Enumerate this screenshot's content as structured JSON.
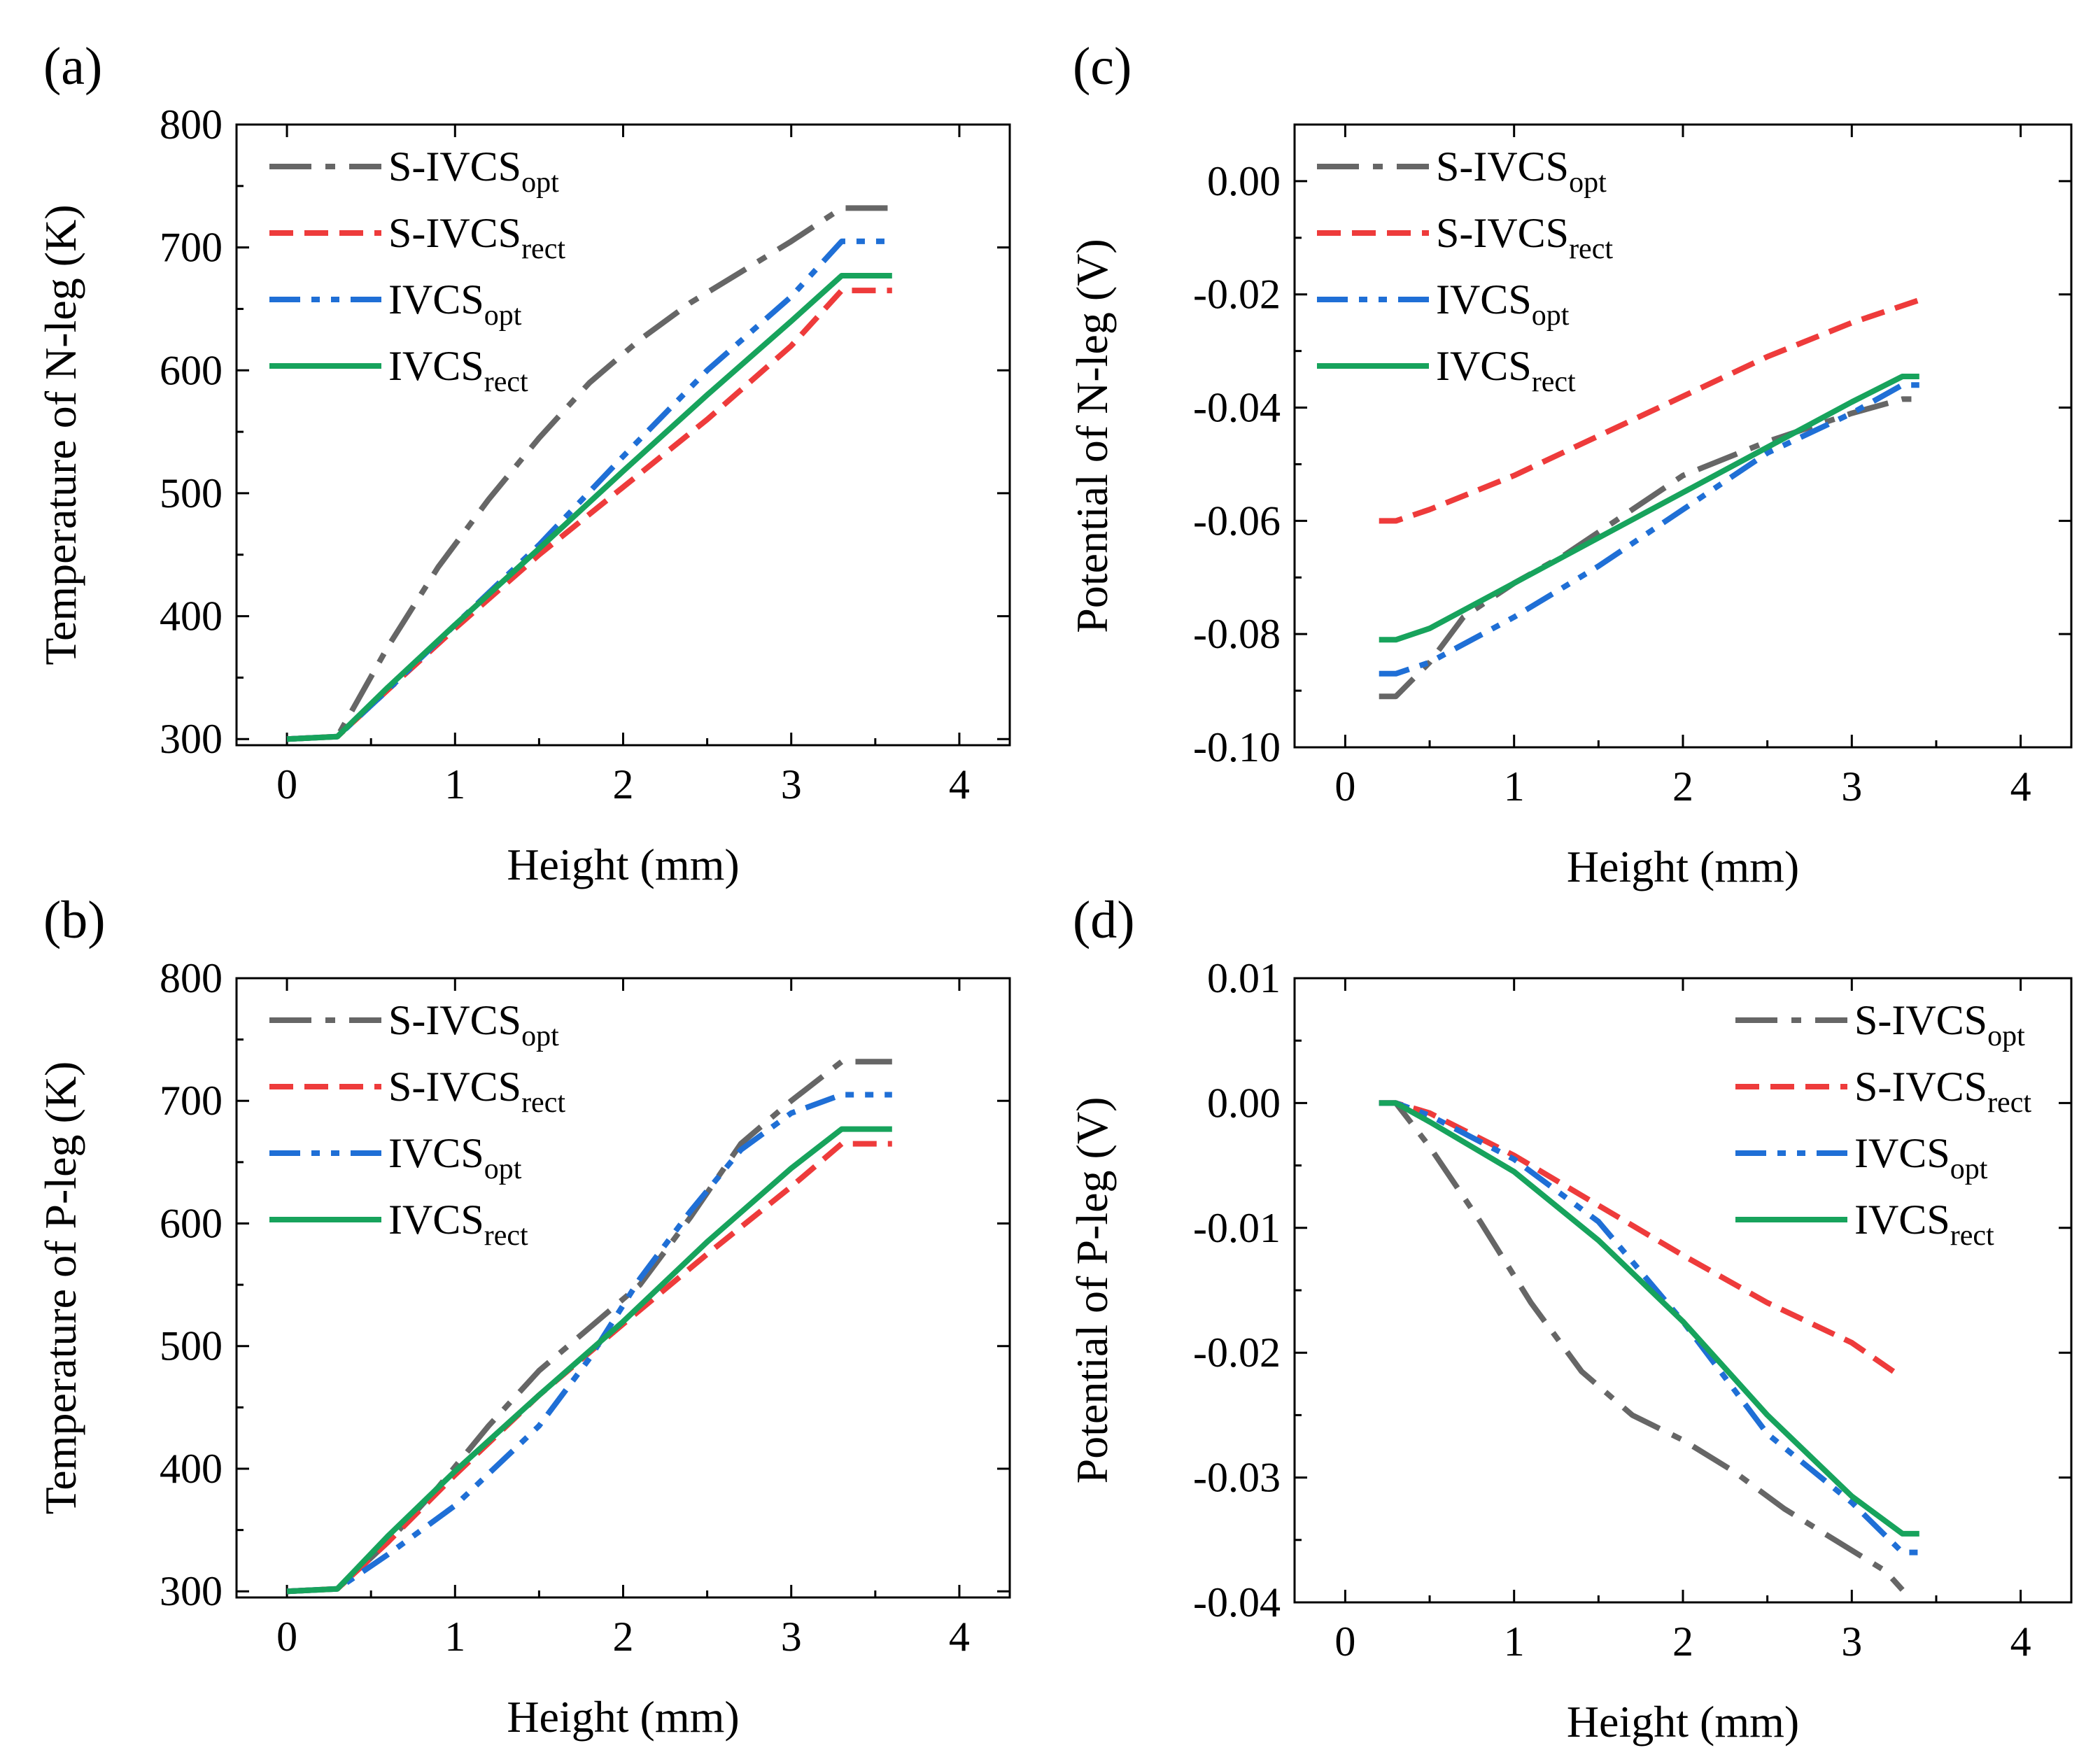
{
  "chart_data": [
    {
      "id": "a",
      "panel_label": "(a)",
      "type": "line",
      "xlabel": "Height (mm)",
      "ylabel": "Temperature of  N-leg (K)",
      "xlim": [
        -0.3,
        4.3
      ],
      "ylim": [
        295,
        800
      ],
      "xticks": [
        0,
        1,
        2,
        3,
        4
      ],
      "yticks": [
        300,
        400,
        500,
        600,
        700,
        800
      ],
      "ytick_labels": [
        "300",
        "400",
        "500",
        "600",
        "700",
        "800"
      ],
      "legend_position": "top-left",
      "series": [
        {
          "name": "S-IVCS",
          "sub": "opt",
          "style": "dashdot",
          "color": "#666666",
          "x": [
            0,
            0.3,
            0.6,
            0.9,
            1.2,
            1.5,
            1.8,
            2.1,
            2.4,
            2.7,
            3.0,
            3.3,
            3.6
          ],
          "y": [
            300,
            302,
            375,
            440,
            495,
            545,
            590,
            625,
            655,
            680,
            705,
            732,
            732
          ]
        },
        {
          "name": "S-IVCS",
          "sub": "rect",
          "style": "dashed",
          "color": "#ee3b3b",
          "x": [
            0,
            0.3,
            0.6,
            1.0,
            1.5,
            2.0,
            2.5,
            3.0,
            3.3,
            3.6
          ],
          "y": [
            300,
            302,
            340,
            390,
            450,
            505,
            560,
            620,
            665,
            665
          ]
        },
        {
          "name": "IVCS",
          "sub": "opt",
          "style": "dashdotdot",
          "color": "#1f6fd6",
          "x": [
            0,
            0.3,
            0.6,
            1.0,
            1.5,
            2.0,
            2.5,
            3.0,
            3.3,
            3.6
          ],
          "y": [
            300,
            302,
            340,
            393,
            458,
            530,
            600,
            660,
            705,
            705
          ]
        },
        {
          "name": "IVCS",
          "sub": "rect",
          "style": "solid",
          "color": "#17a35c",
          "x": [
            0,
            0.3,
            0.6,
            1.0,
            1.5,
            2.0,
            2.5,
            3.0,
            3.3,
            3.6
          ],
          "y": [
            300,
            302,
            342,
            393,
            455,
            518,
            580,
            640,
            677,
            677
          ]
        }
      ]
    },
    {
      "id": "b",
      "panel_label": "(b)",
      "type": "line",
      "xlabel": "Height (mm)",
      "ylabel": "Temperature of  P-leg (K)",
      "xlim": [
        -0.3,
        4.3
      ],
      "ylim": [
        295,
        800
      ],
      "xticks": [
        0,
        1,
        2,
        3,
        4
      ],
      "yticks": [
        300,
        400,
        500,
        600,
        700,
        800
      ],
      "ytick_labels": [
        "300",
        "400",
        "500",
        "600",
        "700",
        "800"
      ],
      "legend_position": "top-left",
      "series": [
        {
          "name": "S-IVCS",
          "sub": "opt",
          "style": "dashdot",
          "color": "#666666",
          "x": [
            0,
            0.3,
            0.6,
            0.9,
            1.2,
            1.5,
            1.8,
            2.1,
            2.4,
            2.7,
            3.0,
            3.3,
            3.6
          ],
          "y": [
            300,
            302,
            340,
            385,
            435,
            480,
            515,
            550,
            605,
            665,
            700,
            732,
            732
          ]
        },
        {
          "name": "S-IVCS",
          "sub": "rect",
          "style": "dashed",
          "color": "#ee3b3b",
          "x": [
            0,
            0.3,
            0.6,
            1.0,
            1.5,
            2.0,
            2.5,
            3.0,
            3.3,
            3.6
          ],
          "y": [
            300,
            302,
            340,
            395,
            460,
            518,
            575,
            630,
            665,
            665
          ]
        },
        {
          "name": "IVCS",
          "sub": "opt",
          "style": "dashdotdot",
          "color": "#1f6fd6",
          "x": [
            0,
            0.3,
            0.6,
            1.0,
            1.5,
            1.8,
            2.1,
            2.4,
            2.7,
            3.0,
            3.3,
            3.6
          ],
          "y": [
            300,
            302,
            330,
            370,
            435,
            490,
            555,
            610,
            660,
            690,
            705,
            705
          ]
        },
        {
          "name": "IVCS",
          "sub": "rect",
          "style": "solid",
          "color": "#17a35c",
          "x": [
            0,
            0.3,
            0.6,
            1.0,
            1.5,
            2.0,
            2.5,
            3.0,
            3.3,
            3.6
          ],
          "y": [
            300,
            302,
            345,
            398,
            460,
            520,
            585,
            645,
            677,
            677
          ]
        }
      ]
    },
    {
      "id": "c",
      "panel_label": "(c)",
      "type": "line",
      "xlabel": "Height (mm)",
      "ylabel": "Potential of N-leg (V)",
      "xlim": [
        -0.3,
        4.3
      ],
      "ylim": [
        -0.1,
        0.01
      ],
      "xticks": [
        0,
        1,
        2,
        3,
        4
      ],
      "yticks": [
        -0.1,
        -0.08,
        -0.06,
        -0.04,
        -0.02,
        0.0
      ],
      "ytick_labels": [
        "-0.10",
        "-0.08",
        "-0.06",
        "-0.04",
        "-0.02",
        "0.00"
      ],
      "legend_position": "top-left",
      "series": [
        {
          "name": "S-IVCS",
          "sub": "opt",
          "style": "dashdot",
          "color": "#666666",
          "x": [
            0.2,
            0.3,
            0.5,
            0.7,
            1.0,
            1.3,
            1.6,
            2.0,
            2.5,
            3.0,
            3.3,
            3.4
          ],
          "y": [
            -0.091,
            -0.091,
            -0.085,
            -0.077,
            -0.071,
            -0.066,
            -0.06,
            -0.052,
            -0.046,
            -0.041,
            -0.0385,
            -0.0385
          ]
        },
        {
          "name": "S-IVCS",
          "sub": "rect",
          "style": "dashed",
          "color": "#ee3b3b",
          "x": [
            0.2,
            0.3,
            0.5,
            1.0,
            1.5,
            2.0,
            2.5,
            3.0,
            3.4
          ],
          "y": [
            -0.06,
            -0.06,
            -0.058,
            -0.052,
            -0.045,
            -0.038,
            -0.031,
            -0.025,
            -0.021
          ]
        },
        {
          "name": "IVCS",
          "sub": "opt",
          "style": "dashdotdot",
          "color": "#1f6fd6",
          "x": [
            0.2,
            0.3,
            0.5,
            1.0,
            1.5,
            2.0,
            2.5,
            3.0,
            3.3,
            3.4
          ],
          "y": [
            -0.087,
            -0.087,
            -0.085,
            -0.077,
            -0.068,
            -0.058,
            -0.048,
            -0.041,
            -0.036,
            -0.036
          ]
        },
        {
          "name": "IVCS",
          "sub": "rect",
          "style": "solid",
          "color": "#17a35c",
          "x": [
            0.2,
            0.3,
            0.5,
            1.0,
            1.5,
            2.0,
            2.5,
            3.0,
            3.3,
            3.4
          ],
          "y": [
            -0.081,
            -0.081,
            -0.079,
            -0.071,
            -0.063,
            -0.055,
            -0.047,
            -0.039,
            -0.0345,
            -0.0345
          ]
        }
      ]
    },
    {
      "id": "d",
      "panel_label": "(d)",
      "type": "line",
      "xlabel": "Height (mm)",
      "ylabel": "Potential of P-leg (V)",
      "xlim": [
        -0.3,
        4.3
      ],
      "ylim": [
        -0.04,
        0.01
      ],
      "xticks": [
        0,
        1,
        2,
        3,
        4
      ],
      "yticks": [
        -0.04,
        -0.03,
        -0.02,
        -0.01,
        0.0,
        0.01
      ],
      "ytick_labels": [
        "-0.04",
        "-0.03",
        "-0.02",
        "-0.01",
        "0.00",
        "0.01"
      ],
      "legend_position": "top-right",
      "series": [
        {
          "name": "S-IVCS",
          "sub": "opt",
          "style": "dashdot",
          "color": "#666666",
          "x": [
            0.2,
            0.3,
            0.5,
            0.8,
            1.1,
            1.4,
            1.7,
            2.0,
            2.3,
            2.6,
            2.9,
            3.2,
            3.3
          ],
          "y": [
            0,
            0,
            -0.0035,
            -0.0095,
            -0.016,
            -0.0215,
            -0.025,
            -0.027,
            -0.0295,
            -0.0325,
            -0.035,
            -0.0375,
            -0.039
          ]
        },
        {
          "name": "S-IVCS",
          "sub": "rect",
          "style": "dashed",
          "color": "#ee3b3b",
          "x": [
            0.2,
            0.3,
            0.5,
            1.0,
            1.5,
            2.0,
            2.5,
            3.0,
            3.3
          ],
          "y": [
            0,
            0,
            -0.0008,
            -0.0042,
            -0.0082,
            -0.0122,
            -0.016,
            -0.0192,
            -0.022
          ]
        },
        {
          "name": "IVCS",
          "sub": "opt",
          "style": "dashdotdot",
          "color": "#1f6fd6",
          "x": [
            0.2,
            0.3,
            0.5,
            1.0,
            1.5,
            2.0,
            2.5,
            3.0,
            3.3,
            3.4
          ],
          "y": [
            0,
            0,
            -0.001,
            -0.0045,
            -0.0095,
            -0.0175,
            -0.0265,
            -0.032,
            -0.036,
            -0.036
          ]
        },
        {
          "name": "IVCS",
          "sub": "rect",
          "style": "solid",
          "color": "#17a35c",
          "x": [
            0.2,
            0.3,
            0.5,
            1.0,
            1.5,
            2.0,
            2.5,
            3.0,
            3.3,
            3.4
          ],
          "y": [
            0,
            0,
            -0.0015,
            -0.0055,
            -0.011,
            -0.0175,
            -0.025,
            -0.0315,
            -0.0345,
            -0.0345
          ]
        }
      ]
    }
  ]
}
